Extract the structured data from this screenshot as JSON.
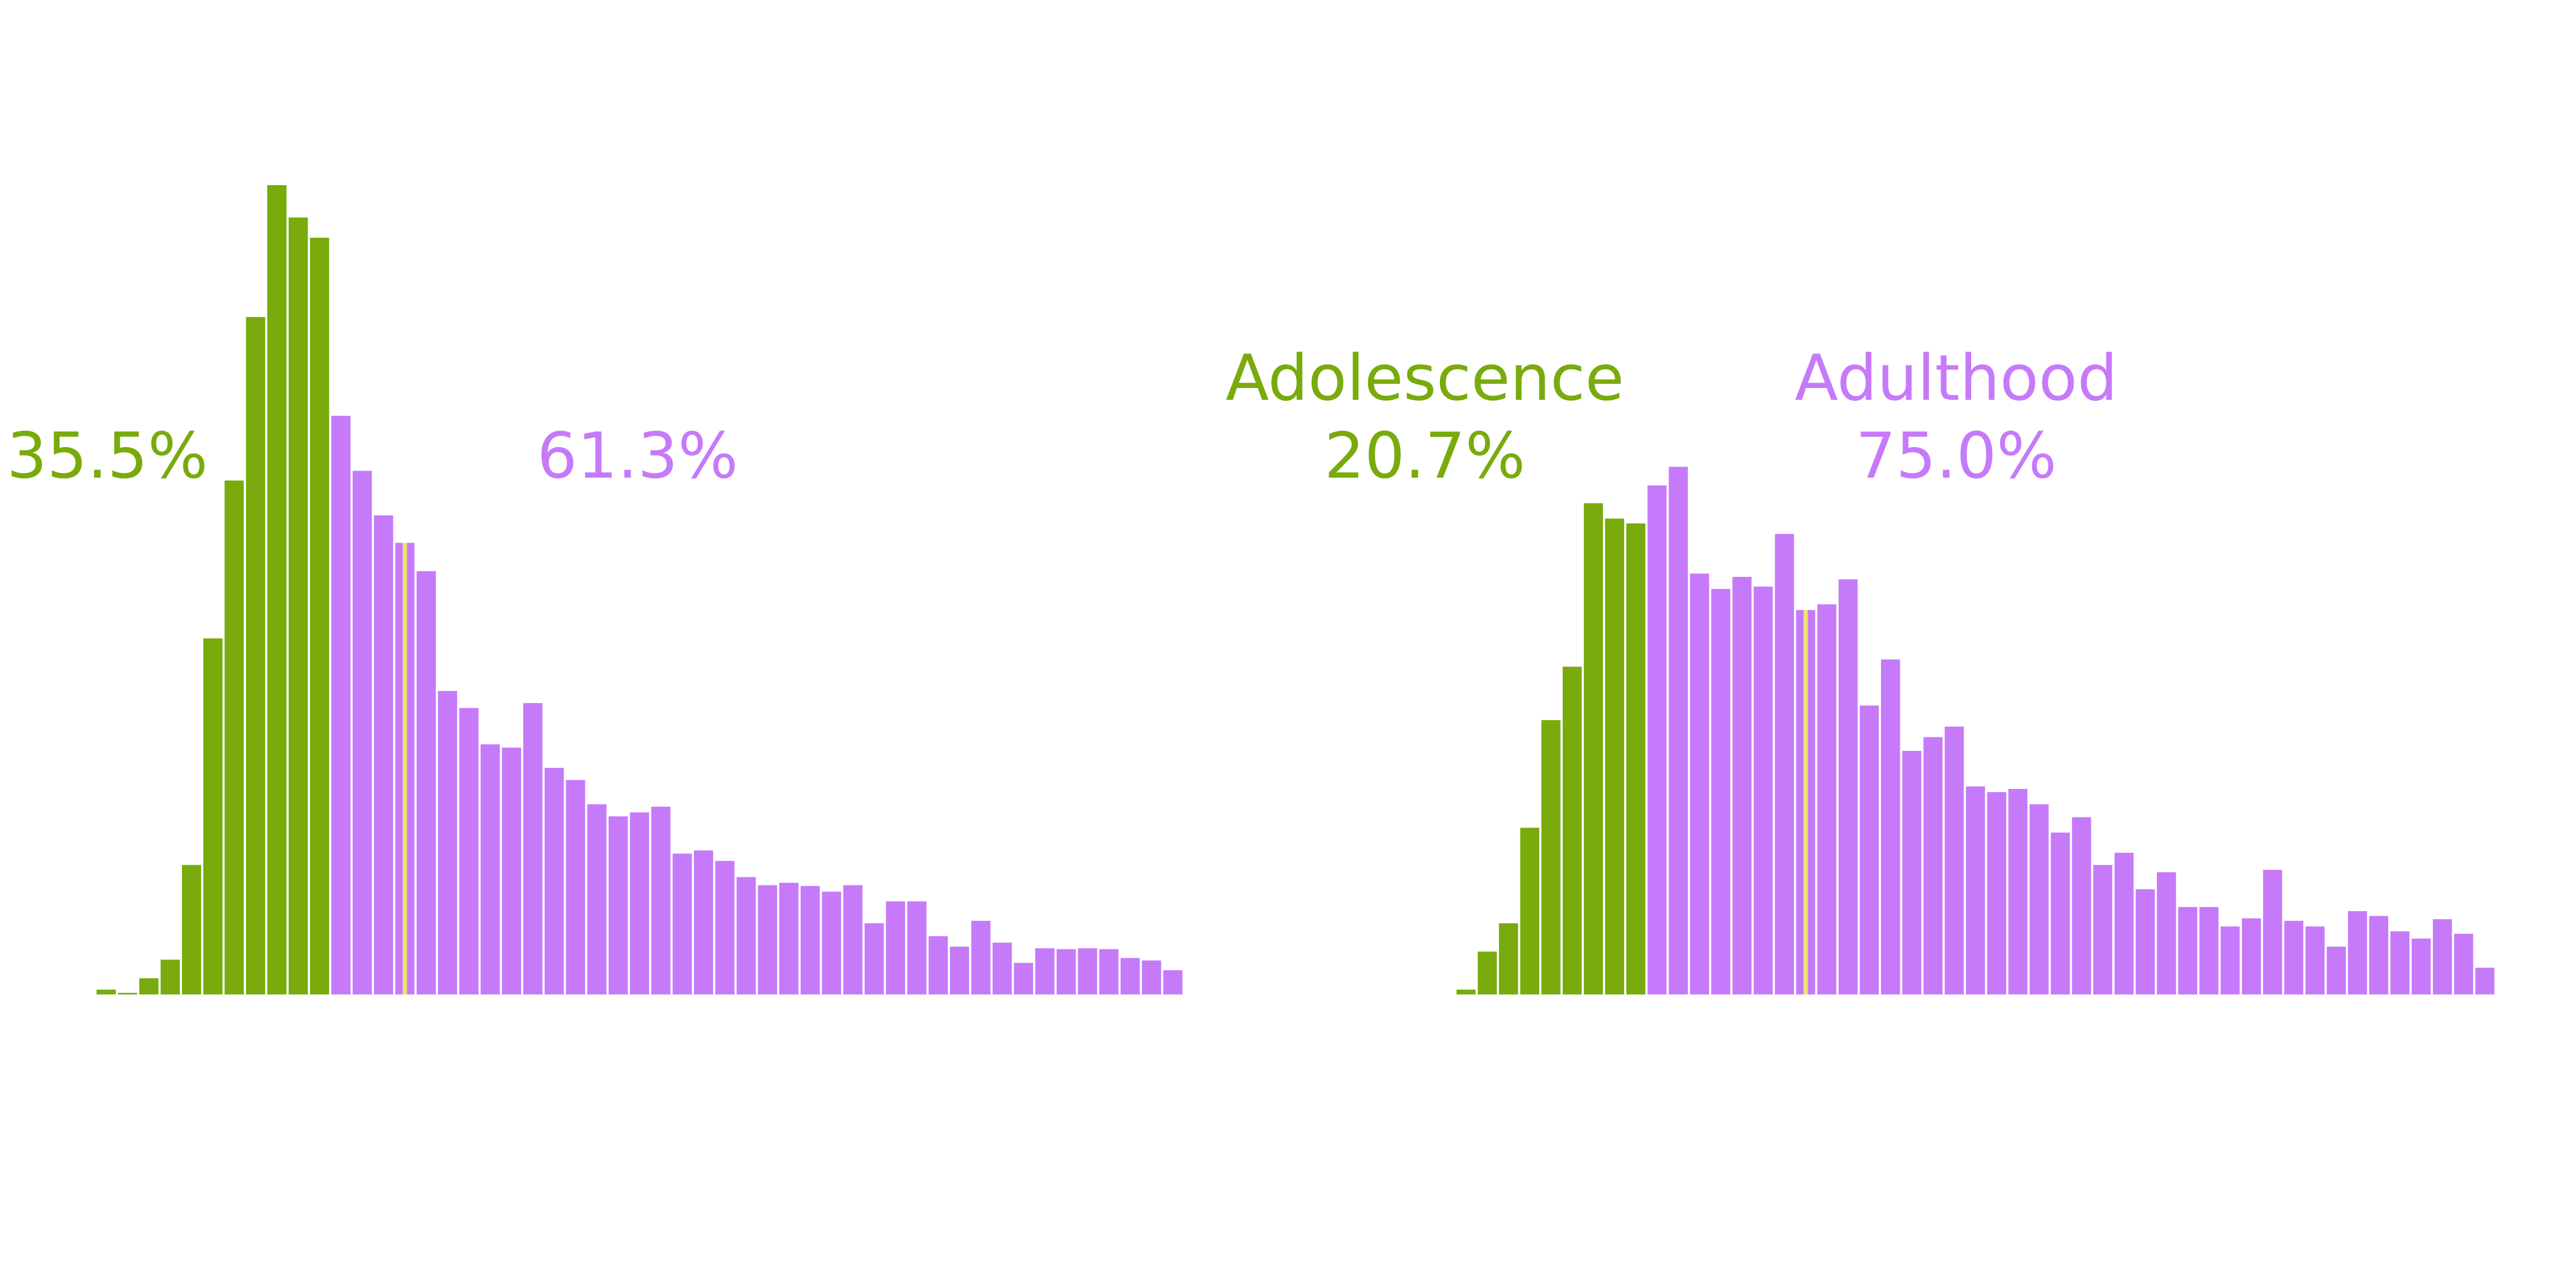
{
  "colors": {
    "adolescence": "#78ab0b",
    "adulthood": "#c67afa",
    "median_marker": "#f1e36b",
    "background": "#ffffff"
  },
  "legend": {
    "adolescence": "Adolescence",
    "adulthood": "Adulthood"
  },
  "chart_data": [
    {
      "type": "bar",
      "title": "",
      "xlabel": "",
      "ylabel": "",
      "grid": false,
      "ylim": [
        0,
        100
      ],
      "median_bin": 14,
      "summary": {
        "adolescence_pct": "35.5%",
        "adulthood_pct": "61.3%"
      },
      "series": [
        {
          "name": "Adolescence",
          "values": [
            0.6,
            0.2,
            2.0,
            4.3,
            16.0,
            44.0,
            63.5,
            83.7,
            100.0,
            96.0,
            93.5
          ]
        },
        {
          "name": "Adulthood",
          "values": [
            71.5,
            64.7,
            59.2,
            55.8,
            52.3,
            37.5,
            35.4,
            30.9,
            30.5,
            36.0,
            28.0,
            26.5,
            23.5,
            22.0,
            22.5,
            23.2,
            17.4,
            17.8,
            16.5,
            14.5,
            13.5,
            13.8,
            13.4,
            12.7,
            13.5,
            8.8,
            11.5,
            11.5,
            7.2,
            5.9,
            9.1,
            6.4,
            3.9,
            5.7,
            5.6,
            5.7,
            5.6,
            4.5,
            4.2,
            3.0
          ]
        }
      ]
    },
    {
      "type": "bar",
      "title": "",
      "xlabel": "",
      "ylabel": "",
      "grid": false,
      "ylim": [
        0,
        100
      ],
      "median_bin": 16,
      "summary": {
        "adolescence_pct": "20.7%",
        "adulthood_pct": "75.0%"
      },
      "series": [
        {
          "name": "Adolescence",
          "values": [
            0.6,
            5.3,
            8.8,
            20.6,
            33.9,
            40.5,
            60.7,
            58.8,
            58.2
          ]
        },
        {
          "name": "Adulthood",
          "values": [
            62.9,
            65.2,
            52.0,
            50.1,
            51.6,
            50.4,
            56.9,
            47.5,
            48.2,
            51.3,
            35.7,
            41.4,
            30.1,
            31.8,
            33.1,
            25.7,
            25.0,
            25.4,
            23.5,
            20.0,
            21.9,
            16.0,
            17.5,
            13.0,
            15.1,
            10.8,
            10.8,
            8.4,
            9.4,
            15.4,
            9.1,
            8.4,
            5.9,
            10.3,
            9.7,
            7.8,
            6.9,
            9.3,
            7.5,
            3.3
          ]
        }
      ]
    }
  ]
}
